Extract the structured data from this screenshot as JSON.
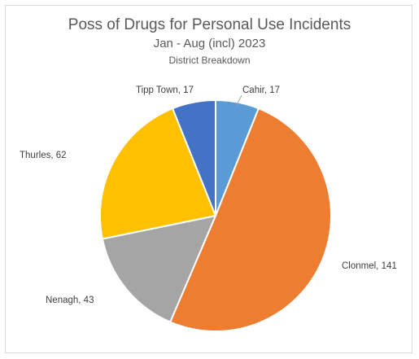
{
  "chart_data": {
    "type": "pie",
    "title": "Poss of Drugs for Personal Use Incidents",
    "subtitle": "Jan - Aug (incl) 2023",
    "subtitle2": "District Breakdown",
    "slices": [
      {
        "label": "Cahir",
        "value": 17,
        "color": "#5b9bd5",
        "data_label": "Cahir, 17"
      },
      {
        "label": "Clonmel",
        "value": 141,
        "color": "#ed7d31",
        "data_label": "Clonmel, 141"
      },
      {
        "label": "Nenagh",
        "value": 43,
        "color": "#a5a5a5",
        "data_label": "Nenagh, 43"
      },
      {
        "label": "Thurles",
        "value": 62,
        "color": "#ffc000",
        "data_label": "Thurles, 62"
      },
      {
        "label": "Tipp Town",
        "value": 17,
        "color": "#4472c4",
        "data_label": "Tipp Town, 17"
      }
    ],
    "legend": "none"
  }
}
